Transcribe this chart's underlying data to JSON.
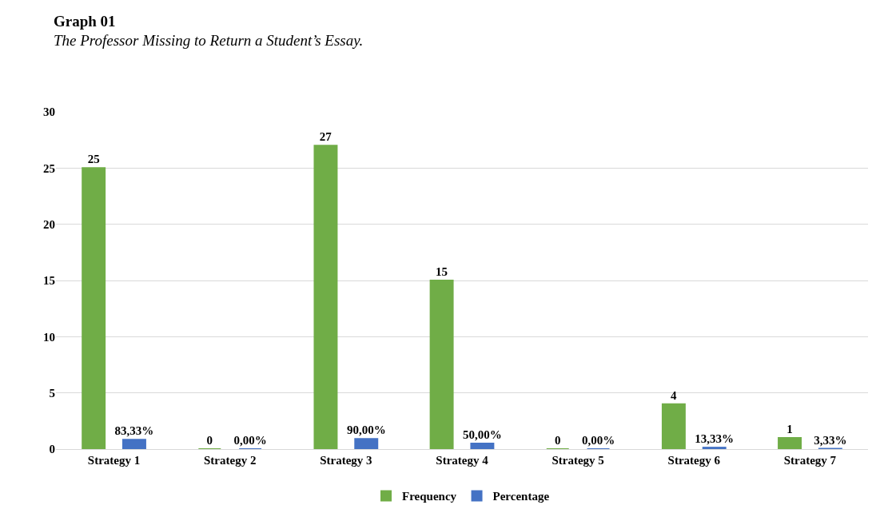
{
  "chart_data": {
    "type": "bar",
    "title": "Graph 01",
    "subtitle": "The Professor Missing to Return a Student’s Essay.",
    "categories": [
      "Strategy 1",
      "Strategy 2",
      "Strategy 3",
      "Strategy 4",
      "Strategy 5",
      "Strategy 6",
      "Strategy 7"
    ],
    "series": [
      {
        "name": "Frequency",
        "color": "#70ad47",
        "values": [
          25,
          0,
          27,
          15,
          0,
          4,
          1
        ],
        "value_labels": [
          "25",
          "0",
          "27",
          "15",
          "0",
          "4",
          "1"
        ]
      },
      {
        "name": "Percentage",
        "color": "#4472c4",
        "values": [
          0.8333,
          0,
          0.9,
          0.5,
          0,
          0.1333,
          0.0333
        ],
        "value_labels": [
          "83,33%",
          "0,00%",
          "90,00%",
          "50,00%",
          "0,00%",
          "13,33%",
          "3,33%"
        ]
      }
    ],
    "ylim": [
      0,
      30
    ],
    "yticks": [
      0,
      5,
      10,
      15,
      20,
      25,
      30
    ],
    "grid": "y",
    "legend": "bottom"
  }
}
